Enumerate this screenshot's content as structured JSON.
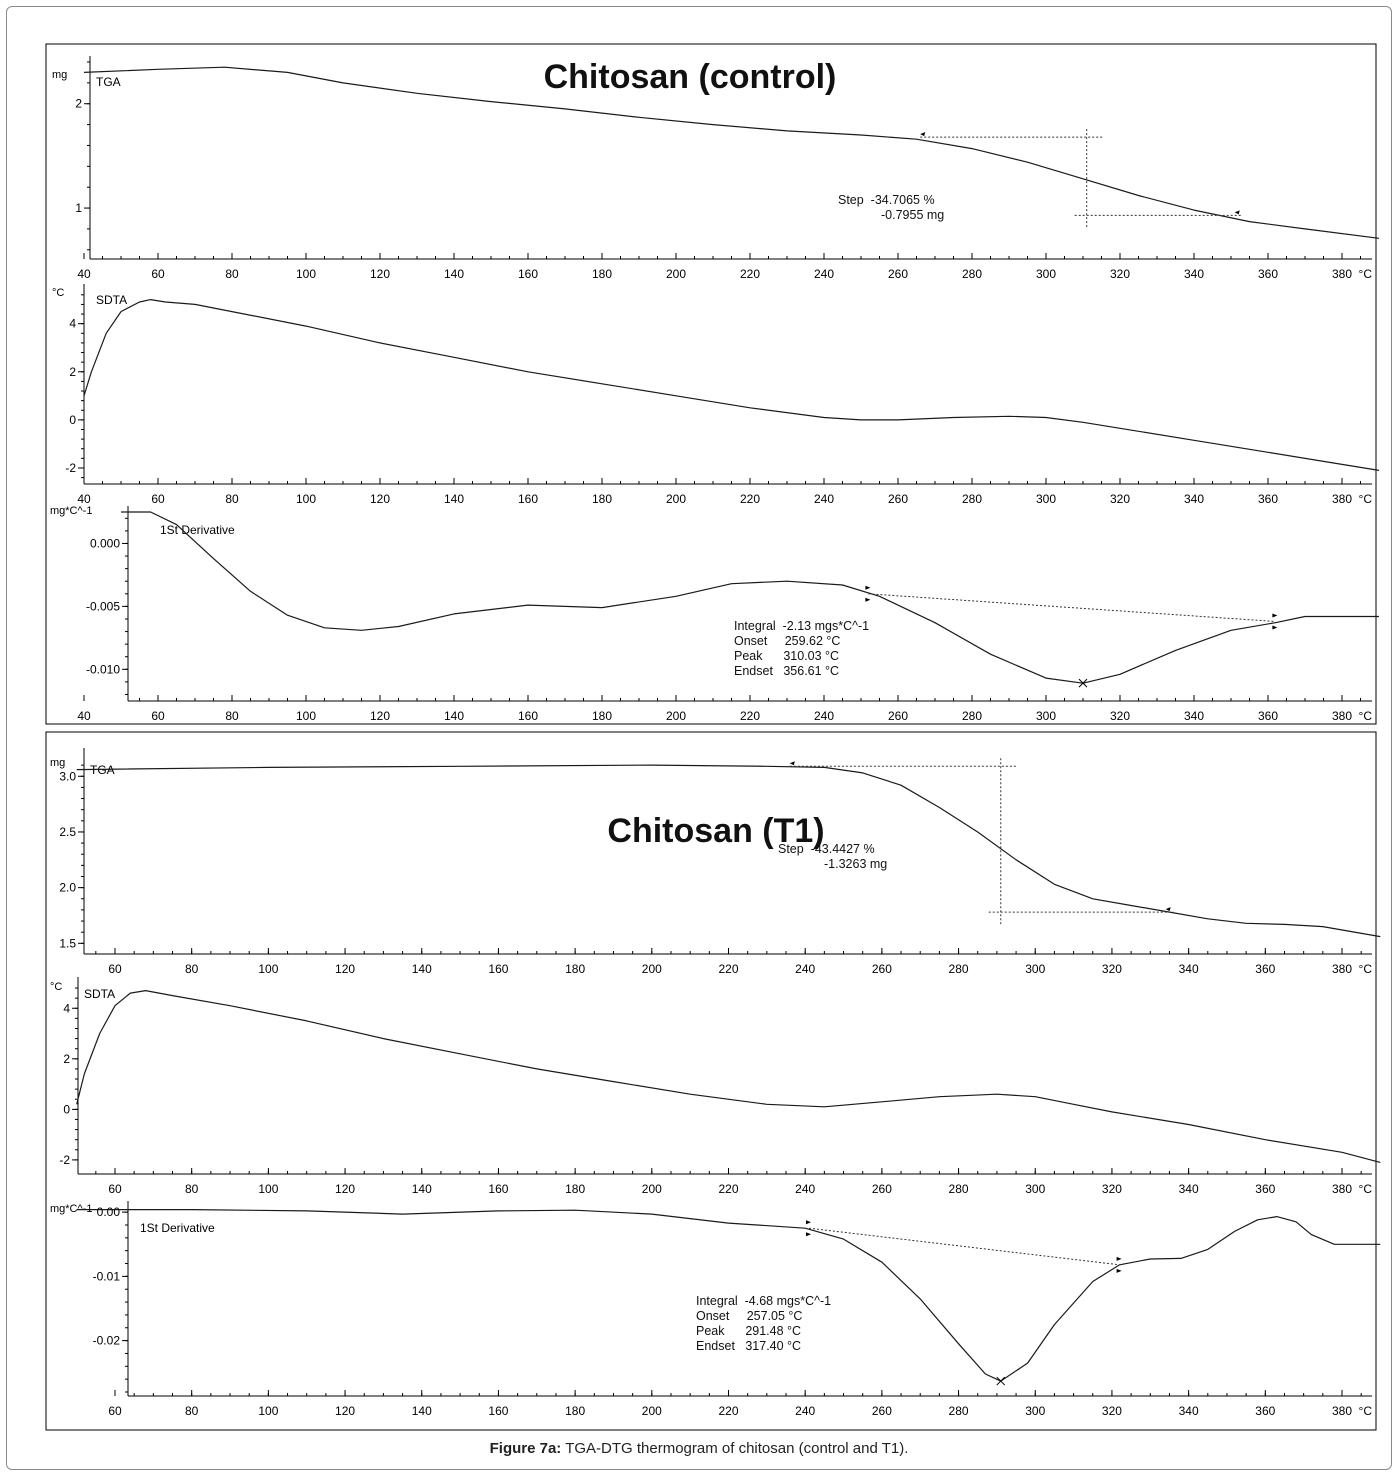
{
  "caption": {
    "label": "Figure 7a:",
    "text": "TGA-DTG thermogram of chitosan (control and T1)."
  },
  "colors": {
    "curve": "#1a1a1a",
    "axis": "#000000",
    "frame": "#8a8a8a"
  },
  "chart_data": [
    {
      "type": "line",
      "panel_title": "Chitosan (control)",
      "title": "",
      "ylabel": "mg",
      "series_label": "TGA",
      "xlim": [
        40,
        390
      ],
      "ylim": [
        0.55,
        2.4
      ],
      "x_ticks": [
        40,
        60,
        80,
        100,
        120,
        140,
        160,
        180,
        200,
        220,
        240,
        260,
        280,
        300,
        320,
        340,
        360,
        380
      ],
      "x_unit": "°C",
      "y_ticks": [
        1,
        2
      ],
      "y_tick_labels": [
        "1",
        "2"
      ],
      "series": [
        {
          "x": [
            40,
            60,
            78,
            95,
            110,
            130,
            150,
            170,
            190,
            210,
            230,
            250,
            265,
            280,
            295,
            310,
            325,
            340,
            355,
            370,
            390
          ],
          "y": [
            2.3,
            2.33,
            2.35,
            2.3,
            2.2,
            2.1,
            2.02,
            1.95,
            1.87,
            1.8,
            1.74,
            1.7,
            1.66,
            1.57,
            1.44,
            1.28,
            1.12,
            0.98,
            0.87,
            0.8,
            0.71
          ]
        }
      ],
      "annotation": {
        "lines": [
          "Step  -34.7065 %",
          "-0.7955 mg"
        ]
      },
      "markers": [
        {
          "x": 266,
          "y": 1.68
        },
        {
          "x": 351,
          "y": 0.93
        }
      ],
      "step": {
        "x": 311,
        "upper": 1.68,
        "lower": 0.93,
        "x_start": 266,
        "x_end": 351
      }
    },
    {
      "type": "line",
      "title": "",
      "ylabel": "°C",
      "series_label": "SDTA",
      "xlim": [
        40,
        390
      ],
      "ylim": [
        -2.5,
        5.4
      ],
      "x_ticks": [
        40,
        60,
        80,
        100,
        120,
        140,
        160,
        180,
        200,
        220,
        240,
        260,
        280,
        300,
        320,
        340,
        360,
        380
      ],
      "x_unit": "°C",
      "y_ticks": [
        -2,
        0,
        2,
        4
      ],
      "y_tick_labels": [
        "-2",
        "0",
        "2",
        "4"
      ],
      "series": [
        {
          "x": [
            40,
            42,
            46,
            50,
            55,
            58,
            62,
            70,
            80,
            100,
            120,
            140,
            160,
            180,
            200,
            220,
            240,
            250,
            260,
            275,
            290,
            300,
            310,
            320,
            340,
            360,
            380,
            390
          ],
          "y": [
            1.0,
            2.0,
            3.6,
            4.5,
            4.9,
            5.0,
            4.9,
            4.8,
            4.5,
            3.9,
            3.2,
            2.6,
            2.0,
            1.5,
            1.0,
            0.5,
            0.1,
            0.0,
            0.0,
            0.1,
            0.15,
            0.1,
            -0.1,
            -0.35,
            -0.85,
            -1.35,
            -1.85,
            -2.1
          ]
        }
      ]
    },
    {
      "type": "line",
      "title": "",
      "ylabel": "mg*C^-1",
      "series_label": "1St Derivative",
      "xlim": [
        40,
        390
      ],
      "ylim": [
        -0.0122,
        0.0025
      ],
      "x_ticks": [
        40,
        60,
        80,
        100,
        120,
        140,
        160,
        180,
        200,
        220,
        240,
        260,
        280,
        300,
        320,
        340,
        360,
        380
      ],
      "x_unit": "°C",
      "y_ticks": [
        0.0,
        -0.005,
        -0.01
      ],
      "y_tick_labels": [
        "0.000",
        "-0.005",
        "-0.010"
      ],
      "series": [
        {
          "x": [
            50,
            58,
            65,
            75,
            85,
            95,
            105,
            115,
            125,
            140,
            160,
            180,
            200,
            215,
            230,
            245,
            255,
            270,
            285,
            300,
            310,
            320,
            335,
            350,
            362,
            370,
            390
          ],
          "y": [
            0.0025,
            0.0025,
            0.0015,
            -0.0012,
            -0.0038,
            -0.0057,
            -0.0067,
            -0.0069,
            -0.0066,
            -0.0056,
            -0.0049,
            -0.0051,
            -0.0042,
            -0.0032,
            -0.003,
            -0.0033,
            -0.0042,
            -0.0063,
            -0.0088,
            -0.0107,
            -0.0111,
            -0.0104,
            -0.0085,
            -0.0069,
            -0.0063,
            -0.0058,
            -0.0058
          ]
        }
      ],
      "annotation": {
        "lines": [
          "Integral  -2.13 mgs*C^-1",
          "Onset     259.62 °C",
          "Peak      310.03 °C",
          "Endset   356.61 °C"
        ]
      },
      "baseline": {
        "x": [
          252,
          362
        ],
        "y": [
          -0.004,
          -0.0062
        ]
      },
      "peak": {
        "x": 310,
        "y": -0.0111
      }
    },
    {
      "type": "line",
      "panel_title": "Chitosan (T1)",
      "title": "",
      "ylabel": "mg",
      "series_label": "TGA",
      "xlim": [
        50,
        390
      ],
      "ylim": [
        1.44,
        3.2
      ],
      "x_ticks": [
        60,
        80,
        100,
        120,
        140,
        160,
        180,
        200,
        220,
        240,
        260,
        280,
        300,
        320,
        340,
        360,
        380
      ],
      "x_unit": "°C",
      "y_ticks": [
        1.5,
        2.0,
        2.5,
        3.0
      ],
      "y_tick_labels": [
        "1.5",
        "2.0",
        "2.5",
        "3.0"
      ],
      "series": [
        {
          "x": [
            50,
            100,
            150,
            200,
            230,
            245,
            255,
            265,
            275,
            285,
            295,
            305,
            315,
            325,
            335,
            345,
            355,
            365,
            375,
            390
          ],
          "y": [
            3.06,
            3.08,
            3.09,
            3.1,
            3.09,
            3.08,
            3.03,
            2.92,
            2.72,
            2.5,
            2.25,
            2.03,
            1.9,
            1.84,
            1.78,
            1.72,
            1.68,
            1.67,
            1.65,
            1.56
          ]
        }
      ],
      "annotation": {
        "lines": [
          "Step  -43.4427 %",
          "-1.3263 mg"
        ]
      },
      "markers": [
        {
          "x": 236,
          "y": 3.09
        },
        {
          "x": 334,
          "y": 1.78
        }
      ],
      "step": {
        "x": 291,
        "upper": 3.09,
        "lower": 1.78,
        "x_start": 236,
        "x_end": 334
      }
    },
    {
      "type": "line",
      "title": "",
      "ylabel": "°C",
      "series_label": "SDTA",
      "xlim": [
        50,
        390
      ],
      "ylim": [
        -2.4,
        5.0
      ],
      "x_ticks": [
        60,
        80,
        100,
        120,
        140,
        160,
        180,
        200,
        220,
        240,
        260,
        280,
        300,
        320,
        340,
        360,
        380
      ],
      "x_unit": "°C",
      "y_ticks": [
        -2,
        0,
        2,
        4
      ],
      "y_tick_labels": [
        "-2",
        "0",
        "2",
        "4"
      ],
      "series": [
        {
          "x": [
            50,
            52,
            56,
            60,
            64,
            68,
            75,
            90,
            110,
            130,
            150,
            170,
            190,
            210,
            230,
            245,
            260,
            275,
            290,
            300,
            310,
            320,
            340,
            360,
            380,
            390
          ],
          "y": [
            0.2,
            1.4,
            3.0,
            4.1,
            4.6,
            4.7,
            4.5,
            4.1,
            3.5,
            2.8,
            2.2,
            1.6,
            1.1,
            0.6,
            0.2,
            0.1,
            0.3,
            0.5,
            0.6,
            0.5,
            0.2,
            -0.1,
            -0.6,
            -1.2,
            -1.7,
            -2.1
          ]
        }
      ]
    },
    {
      "type": "line",
      "title": "",
      "ylabel": "mg*C^-1",
      "series_label": "1St Derivative",
      "xlim": [
        50,
        390
      ],
      "ylim": [
        -0.028,
        0.0008
      ],
      "x_ticks": [
        60,
        80,
        100,
        120,
        140,
        160,
        180,
        200,
        220,
        240,
        260,
        280,
        300,
        320,
        340,
        360,
        380
      ],
      "x_unit": "°C",
      "y_ticks": [
        0.0,
        -0.01,
        -0.02
      ],
      "y_tick_labels": [
        "0.00",
        "-0.01",
        "-0.02"
      ],
      "series": [
        {
          "x": [
            50,
            80,
            110,
            135,
            160,
            180,
            200,
            220,
            240,
            250,
            260,
            270,
            280,
            287,
            291,
            298,
            305,
            315,
            322,
            330,
            338,
            345,
            352,
            358,
            363,
            368,
            372,
            378,
            390
          ],
          "y": [
            0.0004,
            0.0004,
            0.0002,
            -0.0003,
            0.0002,
            0.0003,
            -0.0003,
            -0.0017,
            -0.0025,
            -0.0042,
            -0.0078,
            -0.0135,
            -0.0205,
            -0.0252,
            -0.0263,
            -0.0235,
            -0.0175,
            -0.0108,
            -0.0082,
            -0.0073,
            -0.0072,
            -0.0058,
            -0.003,
            -0.0012,
            -0.0007,
            -0.0015,
            -0.0035,
            -0.005,
            -0.005
          ]
        }
      ],
      "annotation": {
        "lines": [
          "Integral  -4.68 mgs*C^-1",
          "Onset     257.05 °C",
          "Peak      291.48 °C",
          "Endset   317.40 °C"
        ]
      },
      "baseline": {
        "x": [
          241,
          322
        ],
        "y": [
          -0.0025,
          -0.0082
        ]
      },
      "peak": {
        "x": 291,
        "y": -0.0263
      }
    }
  ]
}
